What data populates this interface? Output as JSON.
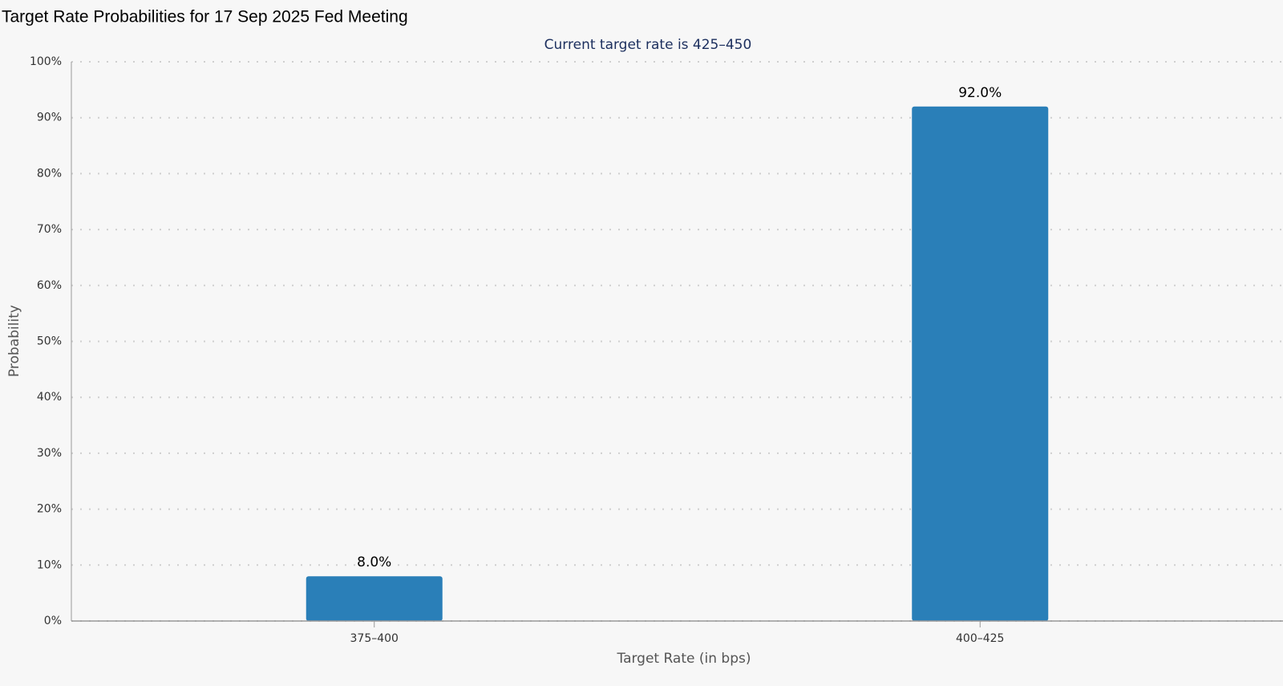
{
  "chart_data": {
    "type": "bar",
    "title": "Target Rate Probabilities for 17 Sep 2025 Fed Meeting",
    "subtitle": "Current target rate is 425–450",
    "x_label": "Target Rate (in bps)",
    "y_label": "Probability",
    "categories": [
      "375–400",
      "400–425"
    ],
    "values": [
      8,
      92
    ],
    "value_labels": [
      "8.0%",
      "92.0%"
    ],
    "color": "#2a7fb8",
    "ylim": [
      0,
      100
    ],
    "yticks": [
      {
        "value": 0,
        "label": "0%"
      },
      {
        "value": 10,
        "label": "10%"
      },
      {
        "value": 20,
        "label": "20%"
      },
      {
        "value": 30,
        "label": "30%"
      },
      {
        "value": 40,
        "label": "40%"
      },
      {
        "value": 50,
        "label": "50%"
      },
      {
        "value": 60,
        "label": "60%"
      },
      {
        "value": 70,
        "label": "70%"
      },
      {
        "value": 80,
        "label": "80%"
      },
      {
        "value": 90,
        "label": "90%"
      },
      {
        "value": 100,
        "label": "100%"
      }
    ],
    "grid": true
  }
}
